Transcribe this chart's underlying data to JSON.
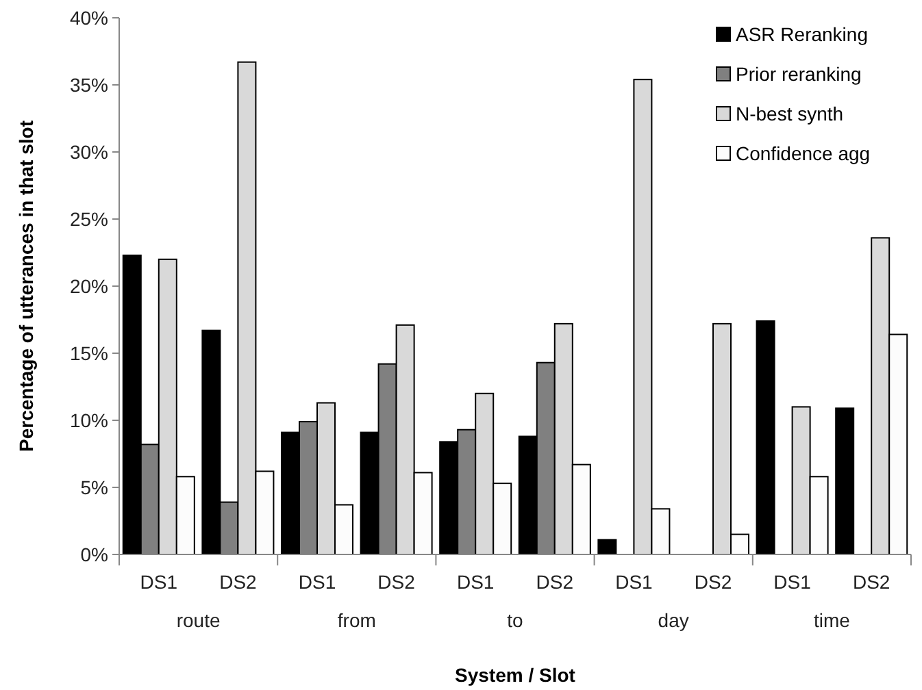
{
  "chart_data": {
    "type": "bar",
    "xlabel": "System / Slot",
    "ylabel": "Percentage of utterances in that slot",
    "categories": [
      "DS1",
      "DS2",
      "DS1",
      "DS2",
      "DS1",
      "DS2",
      "DS1",
      "DS2",
      "DS1",
      "DS2"
    ],
    "annotations": [
      "route",
      "from",
      "to",
      "day",
      "time"
    ],
    "series": [
      {
        "name": "ASR Reranking",
        "color": "#000000",
        "values": [
          22.3,
          16.7,
          9.1,
          9.1,
          8.4,
          8.8,
          1.1,
          0,
          17.4,
          10.9
        ]
      },
      {
        "name": "Prior reranking",
        "color": "#808080",
        "values": [
          8.2,
          3.9,
          9.9,
          14.2,
          9.3,
          14.3,
          0,
          0,
          0,
          0
        ]
      },
      {
        "name": "N-best synth",
        "color": "#d9d9d9",
        "values": [
          22.0,
          36.7,
          11.3,
          17.1,
          12.0,
          17.2,
          35.4,
          17.2,
          11.0,
          23.6
        ]
      },
      {
        "name": "Confidence agg",
        "color": "#fcfcfc",
        "values": [
          5.8,
          6.2,
          3.7,
          6.1,
          5.3,
          6.7,
          3.4,
          1.5,
          5.8,
          16.4
        ]
      }
    ],
    "ylim": [
      0,
      40
    ],
    "yticks": [
      {
        "value": 0,
        "label": "0%"
      },
      {
        "value": 5,
        "label": "5%"
      },
      {
        "value": 10,
        "label": "10%"
      },
      {
        "value": 15,
        "label": "15%"
      },
      {
        "value": 20,
        "label": "20%"
      },
      {
        "value": 25,
        "label": "25%"
      },
      {
        "value": 30,
        "label": "30%"
      },
      {
        "value": 35,
        "label": "35%"
      },
      {
        "value": 40,
        "label": "40%"
      }
    ],
    "grid": false,
    "legend": "top right"
  }
}
